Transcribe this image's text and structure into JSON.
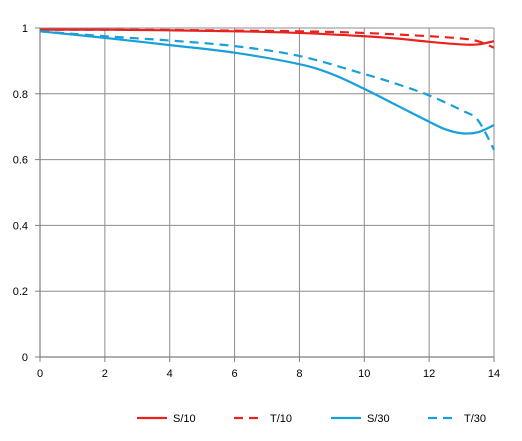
{
  "chart_data": {
    "type": "line",
    "title": "",
    "xlabel": "",
    "ylabel": "",
    "xlim": [
      0,
      14
    ],
    "ylim": [
      0,
      1
    ],
    "x_ticks": [
      0,
      2,
      4,
      6,
      8,
      10,
      12,
      14
    ],
    "y_ticks": [
      0,
      0.2,
      0.4,
      0.6,
      0.8,
      1
    ],
    "x_tick_labels": [
      "0",
      "2",
      "4",
      "6",
      "8",
      "10",
      "12",
      "14"
    ],
    "y_tick_labels": [
      "0",
      "0.2",
      "0.4",
      "0.6",
      "0.8",
      "1"
    ],
    "grid": true,
    "legend_position": "bottom",
    "series": [
      {
        "name": "S/10",
        "color": "#e8231f",
        "dash": "solid",
        "points": [
          [
            0,
            0.995
          ],
          [
            2,
            0.995
          ],
          [
            4,
            0.993
          ],
          [
            6,
            0.99
          ],
          [
            8,
            0.985
          ],
          [
            10,
            0.975
          ],
          [
            11,
            0.968
          ],
          [
            12,
            0.958
          ],
          [
            13,
            0.95
          ],
          [
            13.5,
            0.95
          ],
          [
            14,
            0.96
          ]
        ]
      },
      {
        "name": "T/10",
        "color": "#e8231f",
        "dash": "dashed",
        "points": [
          [
            0,
            0.995
          ],
          [
            2,
            0.995
          ],
          [
            4,
            0.994
          ],
          [
            6,
            0.992
          ],
          [
            8,
            0.99
          ],
          [
            10,
            0.985
          ],
          [
            12,
            0.975
          ],
          [
            13,
            0.968
          ],
          [
            13.5,
            0.96
          ],
          [
            14,
            0.94
          ]
        ]
      },
      {
        "name": "S/30",
        "color": "#19a0da",
        "dash": "solid",
        "points": [
          [
            0,
            0.99
          ],
          [
            2,
            0.97
          ],
          [
            4,
            0.948
          ],
          [
            6,
            0.925
          ],
          [
            8,
            0.89
          ],
          [
            9,
            0.86
          ],
          [
            10,
            0.815
          ],
          [
            11,
            0.765
          ],
          [
            12,
            0.715
          ],
          [
            12.5,
            0.692
          ],
          [
            13,
            0.68
          ],
          [
            13.5,
            0.683
          ],
          [
            14,
            0.705
          ]
        ]
      },
      {
        "name": "T/30",
        "color": "#19a0da",
        "dash": "dashed",
        "points": [
          [
            0,
            0.99
          ],
          [
            2,
            0.975
          ],
          [
            4,
            0.962
          ],
          [
            6,
            0.945
          ],
          [
            8,
            0.915
          ],
          [
            10,
            0.86
          ],
          [
            11,
            0.83
          ],
          [
            12,
            0.795
          ],
          [
            13,
            0.75
          ],
          [
            13.5,
            0.72
          ],
          [
            14,
            0.63
          ]
        ]
      }
    ]
  }
}
